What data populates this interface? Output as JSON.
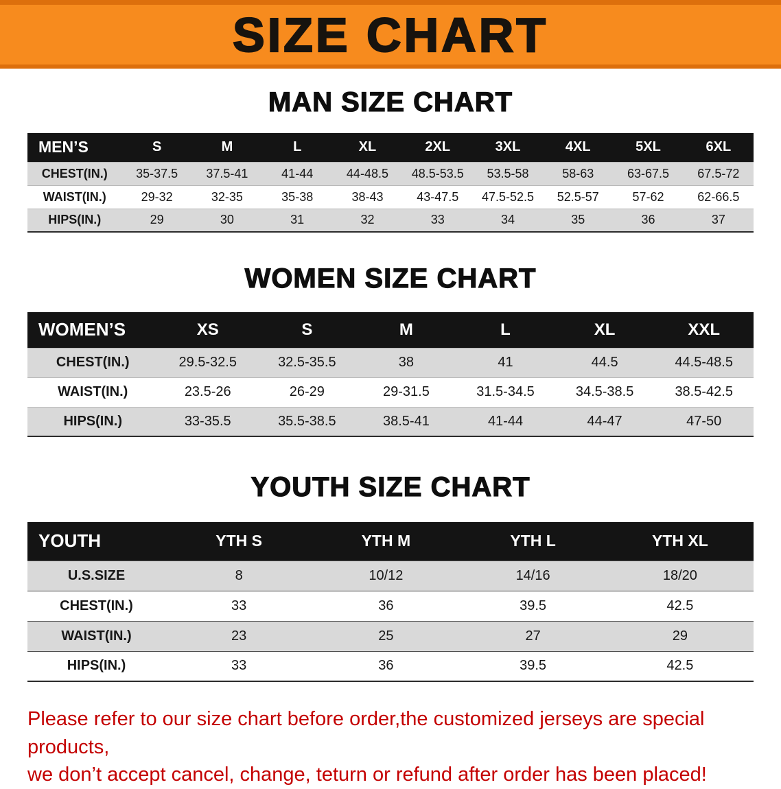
{
  "banner": {
    "title": "SIZE CHART"
  },
  "sections": {
    "men": {
      "heading": "MAN SIZE CHART",
      "table": {
        "header": [
          "MEN’S",
          "S",
          "M",
          "L",
          "XL",
          "2XL",
          "3XL",
          "4XL",
          "5XL",
          "6XL"
        ],
        "rows": [
          [
            "CHEST(IN.)",
            "35-37.5",
            "37.5-41",
            "41-44",
            "44-48.5",
            "48.5-53.5",
            "53.5-58",
            "58-63",
            "63-67.5",
            "67.5-72"
          ],
          [
            "WAIST(IN.)",
            "29-32",
            "32-35",
            "35-38",
            "38-43",
            "43-47.5",
            "47.5-52.5",
            "52.5-57",
            "57-62",
            "62-66.5"
          ],
          [
            "HIPS(IN.)",
            "29",
            "30",
            "31",
            "32",
            "33",
            "34",
            "35",
            "36",
            "37"
          ]
        ]
      }
    },
    "women": {
      "heading": "WOMEN SIZE CHART",
      "table": {
        "header": [
          "WOMEN’S",
          "XS",
          "S",
          "M",
          "L",
          "XL",
          "XXL"
        ],
        "rows": [
          [
            "CHEST(IN.)",
            "29.5-32.5",
            "32.5-35.5",
            "38",
            "41",
            "44.5",
            "44.5-48.5"
          ],
          [
            "WAIST(IN.)",
            "23.5-26",
            "26-29",
            "29-31.5",
            "31.5-34.5",
            "34.5-38.5",
            "38.5-42.5"
          ],
          [
            "HIPS(IN.)",
            "33-35.5",
            "35.5-38.5",
            "38.5-41",
            "41-44",
            "44-47",
            "47-50"
          ]
        ]
      }
    },
    "youth": {
      "heading": "YOUTH SIZE CHART",
      "table": {
        "header": [
          "YOUTH",
          "YTH S",
          "YTH M",
          "YTH L",
          "YTH XL"
        ],
        "rows": [
          [
            "U.S.SIZE",
            "8",
            "10/12",
            "14/16",
            "18/20"
          ],
          [
            "CHEST(IN.)",
            "33",
            "36",
            "39.5",
            "42.5"
          ],
          [
            "WAIST(IN.)",
            "23",
            "25",
            "27",
            "29"
          ],
          [
            "HIPS(IN.)",
            "33",
            "36",
            "39.5",
            "42.5"
          ]
        ]
      }
    }
  },
  "disclaimer": {
    "line1": "Please refer to our size chart before order,the customized jerseys are special products,",
    "line2": "we don’t accept cancel, change, teturn or refund after order has been placed!"
  },
  "colors": {
    "banner_orange": "#F78B1E",
    "banner_border_orange": "#DD6F0C",
    "header_black": "#141414",
    "row_gray": "#D9D9D9",
    "disclaimer_red": "#C40000"
  }
}
